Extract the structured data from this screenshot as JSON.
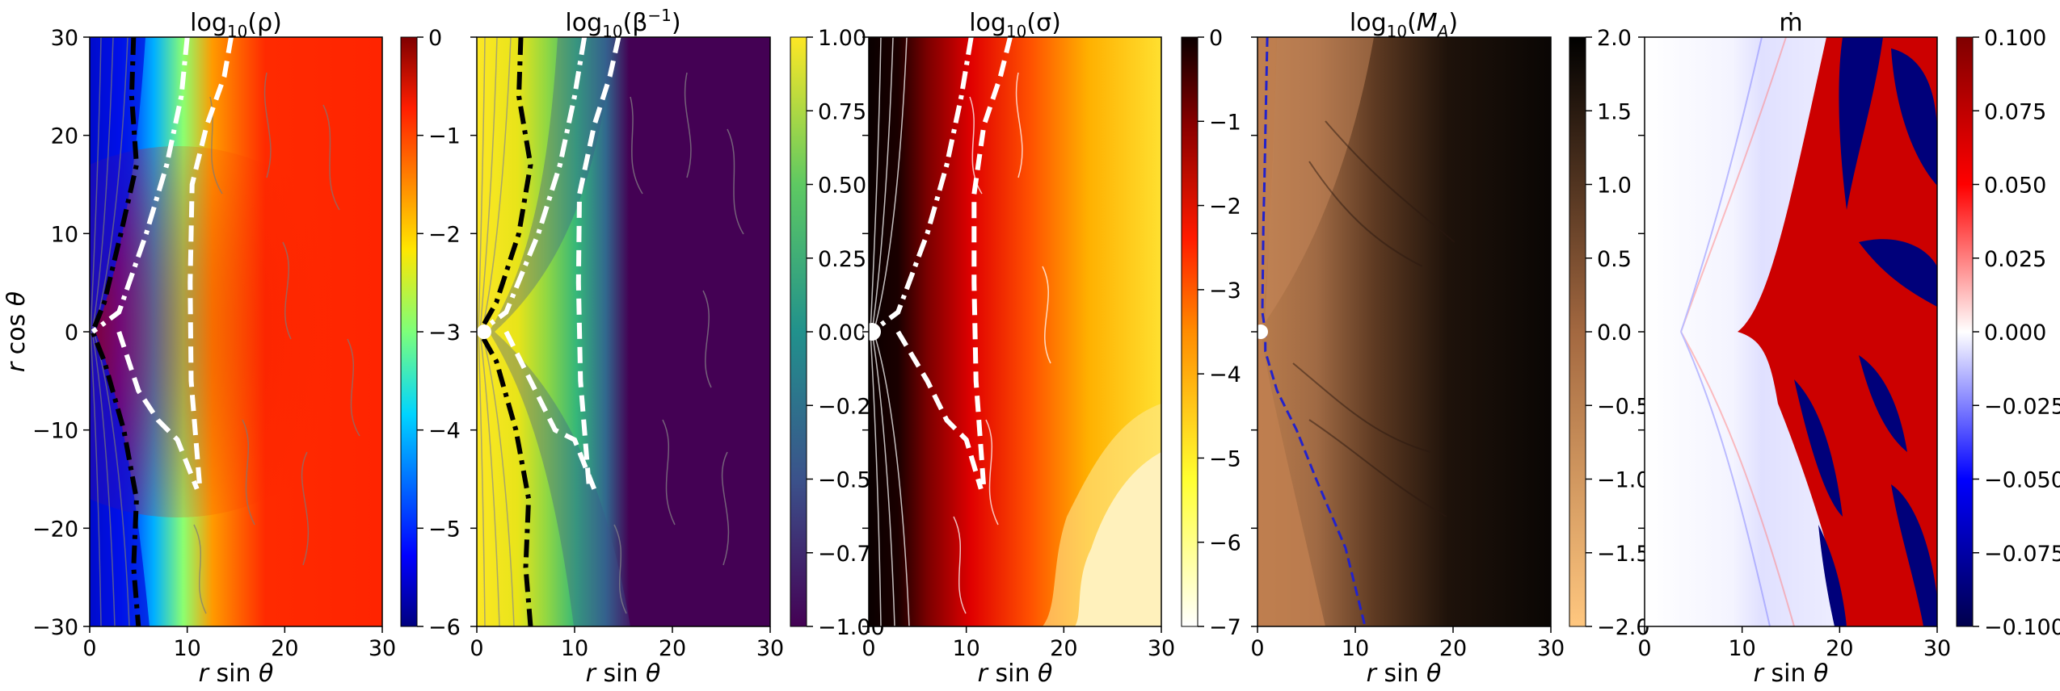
{
  "figure": {
    "ylabel": "r cos θ",
    "xlabel": "r sin θ"
  },
  "chart_data": [
    {
      "type": "heatmap",
      "title": "log10(ρ)",
      "xlabel": "r sin θ",
      "ylabel": "r cos θ",
      "xlim": [
        0,
        30
      ],
      "ylim": [
        -30,
        30
      ],
      "xticks": [
        "0",
        "10",
        "20",
        "30"
      ],
      "yticks": [
        "30",
        "20",
        "10",
        "0",
        "−10",
        "−20",
        "−30"
      ],
      "colorbar": {
        "range": [
          -6,
          0
        ],
        "ticks": [
          "0",
          "−1",
          "−2",
          "−3",
          "−4",
          "−5",
          "−6"
        ],
        "colormap": "jet"
      },
      "contours": [
        {
          "color": "#000000",
          "style": "dash-dot",
          "points": [
            [
              4.5,
              30
            ],
            [
              4.3,
              24
            ],
            [
              4.8,
              17
            ],
            [
              3.2,
              10
            ],
            [
              1.5,
              3
            ],
            [
              0.3,
              0
            ],
            [
              1.5,
              -3
            ],
            [
              3.5,
              -10
            ],
            [
              4.8,
              -17
            ],
            [
              4.5,
              -24
            ],
            [
              5,
              -30
            ]
          ]
        },
        {
          "color": "#ffffff",
          "style": "dash-dot",
          "points": [
            [
              10,
              30
            ],
            [
              9.4,
              24
            ],
            [
              7.9,
              17
            ],
            [
              5.8,
              10
            ],
            [
              3,
              2
            ],
            [
              0.3,
              0
            ]
          ]
        },
        {
          "color": "#ffffff",
          "style": "dash",
          "points": [
            [
              14.5,
              30
            ],
            [
              13.8,
              26
            ],
            [
              12,
              21
            ],
            [
              10.5,
              15
            ],
            [
              10.3,
              5
            ],
            [
              10.4,
              -5
            ],
            [
              11.3,
              -16
            ]
          ]
        },
        {
          "color": "#ffffff",
          "style": "dash",
          "points": [
            [
              3,
              0
            ],
            [
              5,
              -6
            ],
            [
              7,
              -9
            ],
            [
              9,
              -11
            ],
            [
              11,
              -16
            ]
          ]
        }
      ]
    },
    {
      "type": "heatmap",
      "title": "log10(β−1)",
      "xlabel": "r sin θ",
      "xlim": [
        0,
        30
      ],
      "ylim": [
        -30,
        30
      ],
      "xticks": [
        "0",
        "10",
        "20",
        "30"
      ],
      "colorbar": {
        "range": [
          -1,
          1
        ],
        "ticks": [
          "1.00",
          "0.75",
          "0.50",
          "0.25",
          "0.00",
          "−0.25",
          "−0.50",
          "−0.75",
          "−1.00"
        ],
        "colormap": "viridis"
      },
      "contours": [
        {
          "color": "#000000",
          "style": "dash-dot",
          "points": [
            [
              4.5,
              30
            ],
            [
              4.3,
              24
            ],
            [
              5.5,
              17
            ],
            [
              4.3,
              10
            ],
            [
              2,
              3
            ],
            [
              0.3,
              0
            ],
            [
              2,
              -3
            ],
            [
              4,
              -10
            ],
            [
              5.3,
              -17
            ],
            [
              5,
              -24
            ],
            [
              5.5,
              -30
            ]
          ]
        },
        {
          "color": "#ffffff",
          "style": "dash-dot",
          "points": [
            [
              11,
              30
            ],
            [
              10,
              24
            ],
            [
              8.5,
              17
            ],
            [
              6.3,
              10
            ],
            [
              3,
              2
            ],
            [
              0.3,
              0
            ]
          ]
        },
        {
          "color": "#ffffff",
          "style": "dash",
          "points": [
            [
              14.5,
              30
            ],
            [
              13.6,
              26
            ],
            [
              12,
              21
            ],
            [
              10.5,
              14
            ],
            [
              10.4,
              5
            ],
            [
              10.6,
              -5
            ],
            [
              11.5,
              -16
            ]
          ]
        },
        {
          "color": "#ffffff",
          "style": "dash",
          "points": [
            [
              3,
              0
            ],
            [
              6,
              -6
            ],
            [
              8,
              -10
            ],
            [
              10,
              -11
            ],
            [
              12,
              -16
            ]
          ]
        }
      ]
    },
    {
      "type": "heatmap",
      "title": "log10(σ)",
      "xlabel": "r sin θ",
      "xlim": [
        0,
        30
      ],
      "ylim": [
        -30,
        30
      ],
      "xticks": [
        "0",
        "10",
        "20",
        "30"
      ],
      "colorbar": {
        "range": [
          -7,
          0
        ],
        "ticks": [
          "0",
          "−1",
          "−2",
          "−3",
          "−4",
          "−5",
          "−6",
          "−7"
        ],
        "colormap": "hot_r"
      },
      "contours": [
        {
          "color": "#ffffff",
          "style": "dash-dot",
          "points": [
            [
              10.5,
              30
            ],
            [
              9.5,
              24
            ],
            [
              8,
              17
            ],
            [
              6,
              10
            ],
            [
              3,
              2
            ],
            [
              0.3,
              0
            ]
          ]
        },
        {
          "color": "#ffffff",
          "style": "dash",
          "points": [
            [
              14.5,
              30
            ],
            [
              13.5,
              26
            ],
            [
              11.8,
              21
            ],
            [
              10.8,
              14
            ],
            [
              10.8,
              5
            ],
            [
              11,
              -5
            ],
            [
              11.8,
              -16
            ]
          ]
        },
        {
          "color": "#ffffff",
          "style": "dash",
          "points": [
            [
              3,
              0
            ],
            [
              6,
              -5
            ],
            [
              8,
              -9
            ],
            [
              10,
              -11
            ],
            [
              11.5,
              -16
            ]
          ]
        }
      ]
    },
    {
      "type": "heatmap",
      "title": "log10(MA)",
      "xlabel": "r sin θ",
      "xlim": [
        0,
        30
      ],
      "ylim": [
        -30,
        30
      ],
      "xticks": [
        "0",
        "10",
        "20",
        "30"
      ],
      "colorbar": {
        "range": [
          -2,
          2
        ],
        "ticks": [
          "2.0",
          "1.5",
          "1.0",
          "0.5",
          "0.0",
          "−0.5",
          "−1.0",
          "−1.5",
          "−2.0"
        ],
        "colormap": "copper_r"
      },
      "contours": [
        {
          "color": "#2222cc",
          "style": "dash",
          "points": [
            [
              1,
              30
            ],
            [
              0.7,
              15
            ],
            [
              0.6,
              11
            ],
            [
              0.5,
              2
            ],
            [
              0.8,
              0
            ],
            [
              0.8,
              -2
            ],
            [
              2,
              -6
            ],
            [
              4,
              -10
            ],
            [
              6,
              -15
            ],
            [
              9,
              -22
            ],
            [
              11,
              -30
            ]
          ]
        }
      ]
    },
    {
      "type": "heatmap",
      "title": "ṁ",
      "xlabel": "r sin θ",
      "xlim": [
        0,
        30
      ],
      "ylim": [
        -30,
        30
      ],
      "xticks": [
        "0",
        "10",
        "20",
        "30"
      ],
      "colorbar": {
        "range": [
          -0.1,
          0.1
        ],
        "ticks": [
          "0.100",
          "0.075",
          "0.050",
          "0.025",
          "0.000",
          "−0.025",
          "−0.050",
          "−0.075",
          "−0.100"
        ],
        "colormap": "seismic"
      },
      "contours": []
    }
  ]
}
